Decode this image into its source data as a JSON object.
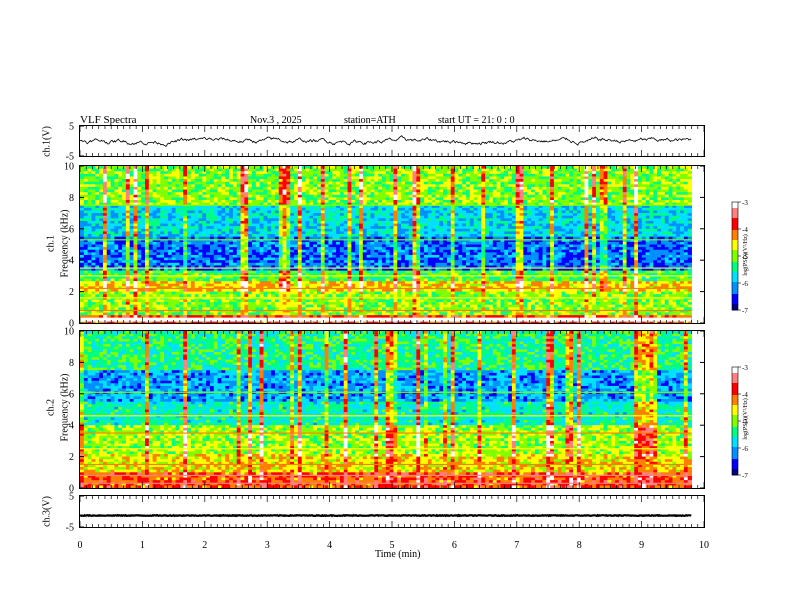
{
  "header": {
    "title": "VLF Spectra",
    "date": "Nov.3 , 2025",
    "station": "station=ATH",
    "start": "start UT = 21: 0 : 0"
  },
  "panels": {
    "ch1_wave_label": "ch.1(V)",
    "ch1_spec_label_top": "ch.1",
    "ch1_spec_label": "Frequency (kHz)",
    "ch2_spec_label_top": "ch.2",
    "ch2_spec_label": "Frequency (kHz)",
    "ch3_wave_label": "ch.3(V)",
    "colorbar_label": "log(PSD)(V²/Hz)"
  },
  "colors": {
    "spectrogram_scale": [
      "#000080",
      "#0000ff",
      "#0090ff",
      "#00e0ff",
      "#00ff80",
      "#80ff00",
      "#ffff00",
      "#ff8000",
      "#ff0000",
      "#ff8080",
      "#ffffff"
    ]
  },
  "chart_data": [
    {
      "type": "line",
      "name": "ch1-waveform",
      "ylabel": "ch.1(V)",
      "ylim": [
        -5,
        5
      ],
      "yticks": [
        "5",
        "-5"
      ],
      "xlim": [
        0,
        10
      ],
      "approx_signal": "noisy waveform near 0 V, range about -2.5 to +2.5 V"
    },
    {
      "type": "heatmap",
      "name": "ch1-spectrogram",
      "ylabel": "Frequency (kHz)",
      "ylim": [
        0,
        10
      ],
      "yticks": [
        "0",
        "2",
        "4",
        "6",
        "8",
        "10"
      ],
      "xlim": [
        0,
        9.8
      ],
      "colorbar": {
        "range": [
          -7,
          -3
        ],
        "ticks": [
          "-3",
          "-4",
          "-5",
          "-6",
          "-7"
        ],
        "label": "log(PSD)(V²/Hz)"
      },
      "bands_khz": [
        {
          "from": 0,
          "to": 0.5,
          "level": -4.0
        },
        {
          "from": 0.5,
          "to": 2.0,
          "level": -5.0
        },
        {
          "from": 2.0,
          "to": 2.6,
          "level": -4.5
        },
        {
          "from": 2.6,
          "to": 3.3,
          "level": -5.2
        },
        {
          "from": 3.3,
          "to": 5.5,
          "level": -6.3
        },
        {
          "from": 5.5,
          "to": 7.5,
          "level": -5.8
        },
        {
          "from": 7.5,
          "to": 10.0,
          "level": -5.0
        }
      ]
    },
    {
      "type": "heatmap",
      "name": "ch2-spectrogram",
      "ylabel": "Frequency (kHz)",
      "ylim": [
        0,
        10
      ],
      "yticks": [
        "0",
        "2",
        "4",
        "6",
        "8",
        "10"
      ],
      "xlim": [
        0,
        9.8
      ],
      "colorbar": {
        "range": [
          -7,
          -3
        ],
        "ticks": [
          "-3",
          "-4",
          "-5",
          "-6",
          "-7"
        ],
        "label": "log(PSD)(V²/Hz)"
      },
      "bands_khz": [
        {
          "from": 0,
          "to": 1.0,
          "level": -4.0
        },
        {
          "from": 1.0,
          "to": 2.2,
          "level": -4.6
        },
        {
          "from": 2.2,
          "to": 4.0,
          "level": -4.9
        },
        {
          "from": 4.0,
          "to": 5.5,
          "level": -5.6
        },
        {
          "from": 5.5,
          "to": 7.5,
          "level": -6.1
        },
        {
          "from": 7.5,
          "to": 10.0,
          "level": -5.4
        }
      ]
    },
    {
      "type": "line",
      "name": "ch3-waveform",
      "ylabel": "ch.3(V)",
      "ylim": [
        -5,
        5
      ],
      "yticks": [
        "5",
        "-5"
      ],
      "xlim": [
        0,
        10
      ],
      "approx_signal": "flat trace at about -1.3 V"
    }
  ],
  "xaxis": {
    "label": "Time (min)",
    "ticks": [
      "0",
      "1",
      "2",
      "3",
      "4",
      "5",
      "6",
      "7",
      "8",
      "9",
      "10"
    ],
    "range": [
      0,
      10
    ]
  }
}
